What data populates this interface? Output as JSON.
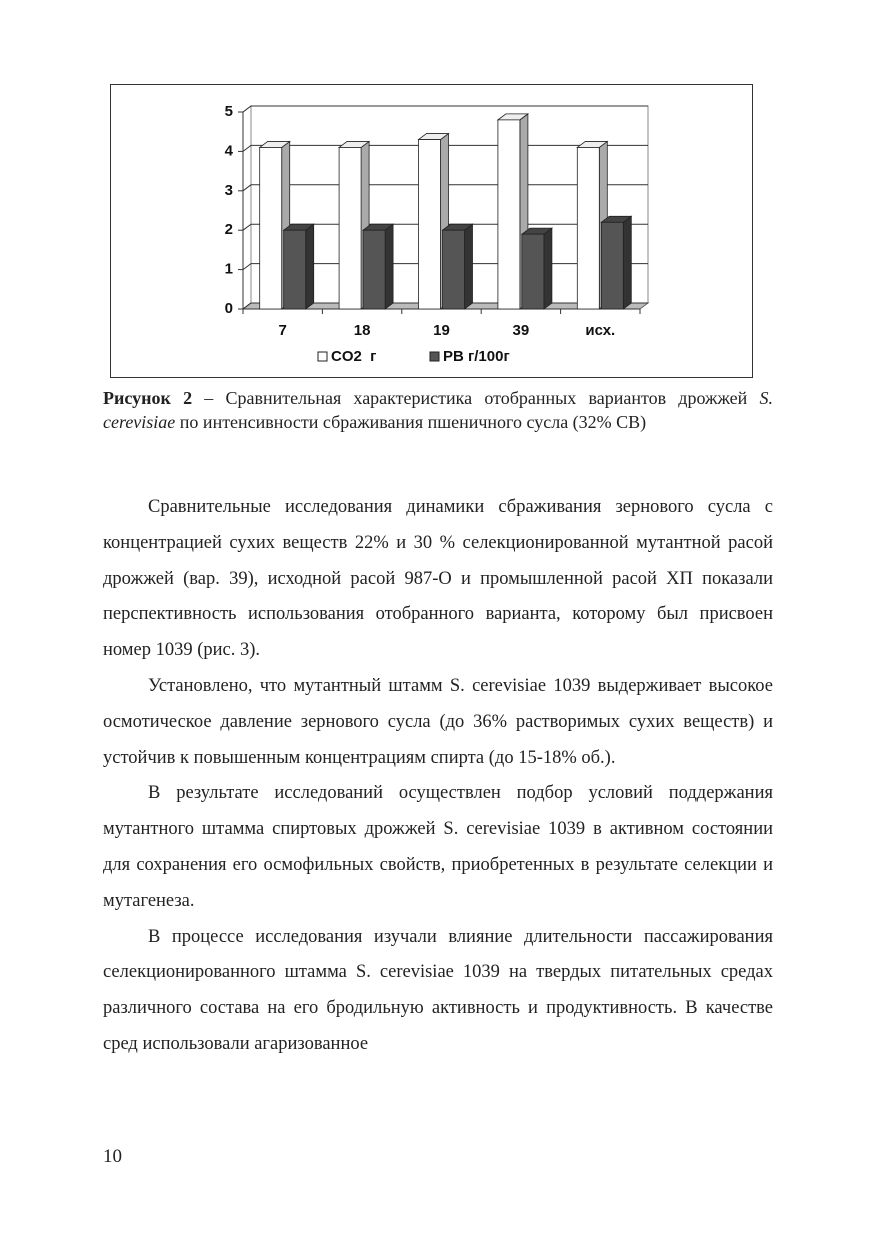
{
  "chart_data": {
    "type": "bar3d",
    "categories": [
      "7",
      "18",
      "19",
      "39",
      "исх."
    ],
    "series": [
      {
        "name": "CO2  г",
        "color": "#ffffff",
        "values": [
          4.1,
          4.1,
          4.3,
          4.8,
          4.1
        ]
      },
      {
        "name": "РВ г/100г",
        "color": "#555555",
        "values": [
          2.0,
          2.0,
          2.0,
          1.9,
          2.2
        ]
      }
    ],
    "ylim": [
      0,
      5
    ],
    "yticks": [
      0,
      1,
      2,
      3,
      4,
      5
    ],
    "grid": true,
    "legend": "bottom"
  },
  "caption": {
    "label": "Рисунок 2",
    "text": "– Сравнительная характеристика отобранных вариантов дрожжей",
    "species": "S. cerevisiae",
    "rest": "по интенсивности сбраживания пшеничного сусла (32% СВ)"
  },
  "paragraphs": [
    "Сравнительные исследования динамики сбраживания зернового сусла с концентрацией сухих веществ 22% и 30 % селекционированной мутантной расой дрожжей (вар. 39), исходной расой 987-О и промышленной расой ХП показали перспективность использования отобранного варианта, которому был присвоен номер 1039 (рис. 3).",
    "Установлено, что мутантный штамм S. cerevisiae 1039 выдерживает высокое осмотическое давление зернового сусла (до 36% растворимых сухих веществ) и устойчив к повышенным концентрациям спирта (до 15-18% об.).",
    "В результате исследований осуществлен подбор условий поддержания мутантного штамма спиртовых дрожжей S. cerevisiae 1039 в активном состоянии для сохранения его осмофильных свойств, приобретенных в результате селекции и мутагенеза.",
    "В процессе исследования изучали влияние длительности пассажирования селекционированного штамма S. cerevisiae 1039 на твердых питательных средах различного состава на его бродильную активность и продуктивность. В качестве сред использовали агаризованное"
  ],
  "page_number": "10"
}
